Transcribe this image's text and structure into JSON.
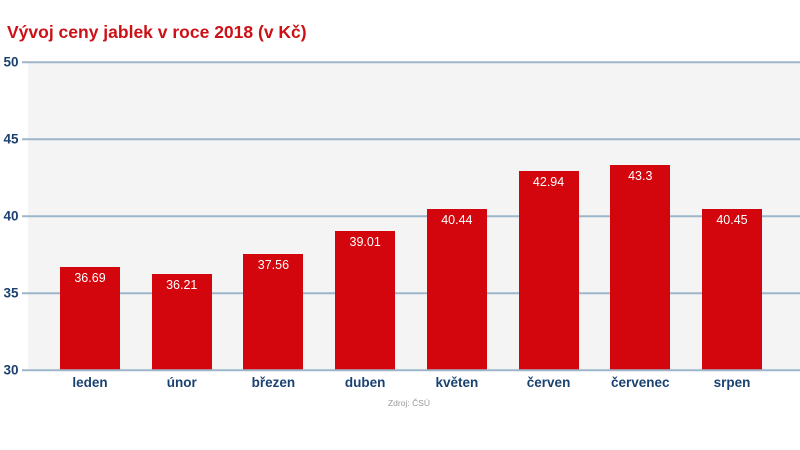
{
  "title": "Vývoj ceny jablek v roce 2018 (v Kč)",
  "source": "Zdroj: ČSÚ",
  "colors": {
    "bar": "#d2060c",
    "title": "#cc1016",
    "axis_text": "#1a4170",
    "gridline": "#9db6ca",
    "plot_bg": "#f4f4f5",
    "value_text": "#ffffff",
    "source_text": "#999999"
  },
  "chart_data": {
    "type": "bar",
    "title": "Vývoj ceny jablek v roce 2018 (v Kč)",
    "categories": [
      "leden",
      "únor",
      "březen",
      "duben",
      "květen",
      "červen",
      "červenec",
      "srpen"
    ],
    "values": [
      36.69,
      36.21,
      37.56,
      39.01,
      40.44,
      42.94,
      43.3,
      40.45
    ],
    "xlabel": "",
    "ylabel": "",
    "ylim": [
      30,
      50
    ],
    "yticks": [
      50,
      45,
      40,
      35,
      30
    ],
    "grid": true,
    "legend": false,
    "bar_color": "#d2060c",
    "value_labels_inside_bars": true
  }
}
